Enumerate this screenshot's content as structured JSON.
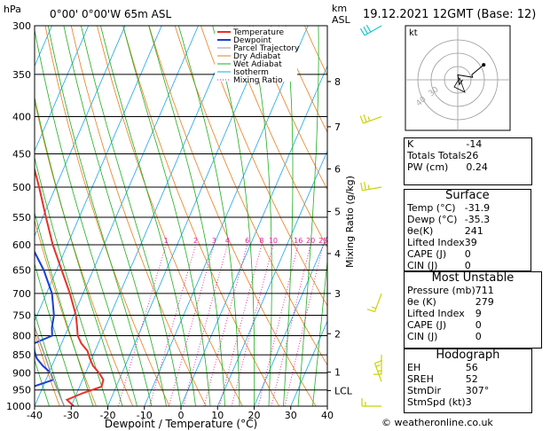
{
  "header": {
    "hpa": "hPa",
    "location": "0°00' 0°00'W 65m ASL",
    "km": "km",
    "asl": "ASL",
    "datetime": "19.12.2021 12GMT (Base: 12)"
  },
  "legend": [
    "Temperature",
    "Dewpoint",
    "Parcel Trajectory",
    "Dry Adiabat",
    "Wet Adiabat",
    "Isotherm",
    "Mixing Ratio"
  ],
  "colors": {
    "temperature": "#e8312a",
    "dewpoint": "#1a3fd1",
    "parcel": "#9a9a9a",
    "dry_adiabat": "#e87e1a",
    "wet_adiabat": "#1faf1f",
    "isotherm": "#1aa7e8",
    "mixing_ratio": "#e0209a",
    "wind": "#c8d400",
    "wind_top": "#18c8c8"
  },
  "chart_data": {
    "type": "line",
    "subtype": "skew-T log-P diagram",
    "xlabel": "Dewpoint / Temperature (°C)",
    "ylabel_right": "Mixing Ratio (g/kg)",
    "xlim": [
      -40,
      40
    ],
    "ylim_hpa": [
      1000,
      300
    ],
    "x_ticks": [
      -40,
      -30,
      -20,
      -10,
      0,
      10,
      20,
      30,
      40
    ],
    "pressure_ticks": [
      300,
      350,
      400,
      450,
      500,
      550,
      600,
      650,
      700,
      750,
      800,
      850,
      900,
      950,
      1000
    ],
    "km_ticks": [
      {
        "label": "8",
        "p": 358
      },
      {
        "label": "7",
        "p": 413
      },
      {
        "label": "6",
        "p": 472
      },
      {
        "label": "5",
        "p": 540
      },
      {
        "label": "4",
        "p": 617
      },
      {
        "label": "3",
        "p": 700
      },
      {
        "label": "2",
        "p": 795
      },
      {
        "label": "1",
        "p": 898
      },
      {
        "label": "LCL",
        "p": 952
      }
    ],
    "mixing_ratio_labels": [
      "1",
      "2",
      "3",
      "4",
      "6",
      "8",
      "10",
      "16",
      "20",
      "25"
    ],
    "series": [
      {
        "name": "Temperature",
        "points": [
          [
            1000,
            -29.3
          ],
          [
            980,
            -31.9
          ],
          [
            960,
            -28.5
          ],
          [
            940,
            -24.0
          ],
          [
            920,
            -24.3
          ],
          [
            900,
            -26.3
          ],
          [
            880,
            -28.8
          ],
          [
            860,
            -30.5
          ],
          [
            840,
            -32.0
          ],
          [
            820,
            -34.6
          ],
          [
            800,
            -36.5
          ],
          [
            780,
            -37.6
          ],
          [
            750,
            -39.4
          ],
          [
            700,
            -43.6
          ],
          [
            650,
            -48.6
          ],
          [
            600,
            -54.0
          ],
          [
            550,
            -59.1
          ],
          [
            500,
            -64.5
          ],
          [
            450,
            -70.8
          ],
          [
            400,
            -77.9
          ],
          [
            350,
            -86.0
          ],
          [
            300,
            -95.4
          ]
        ]
      },
      {
        "name": "Dewpoint",
        "points": [
          [
            1000,
            -43.0
          ],
          [
            990,
            -53.1
          ],
          [
            970,
            -51.0
          ],
          [
            950,
            -45.0
          ],
          [
            920,
            -38.0
          ],
          [
            900,
            -39.5
          ],
          [
            880,
            -42.5
          ],
          [
            860,
            -45.0
          ],
          [
            840,
            -46.5
          ],
          [
            820,
            -47.6
          ],
          [
            800,
            -43.5
          ],
          [
            780,
            -44.5
          ],
          [
            750,
            -45.4
          ],
          [
            700,
            -48.5
          ],
          [
            650,
            -53.5
          ],
          [
            600,
            -60.0
          ],
          [
            550,
            -65.5
          ],
          [
            500,
            -71.0
          ],
          [
            450,
            -76.3
          ],
          [
            400,
            -82.3
          ],
          [
            350,
            -89.2
          ],
          [
            300,
            -97.5
          ]
        ]
      },
      {
        "name": "Parcel Trajectory",
        "points": [
          [
            1000,
            -31.9
          ],
          [
            952,
            -35.5
          ],
          [
            900,
            -39.5
          ],
          [
            850,
            -43.3
          ],
          [
            800,
            -47.5
          ],
          [
            750,
            -51.8
          ],
          [
            700,
            -56.3
          ],
          [
            650,
            -61.2
          ],
          [
            600,
            -66.3
          ],
          [
            550,
            -71.8
          ]
        ]
      }
    ],
    "wind_barbs": [
      {
        "p": 300,
        "dir": 240,
        "kt": 30
      },
      {
        "p": 400,
        "dir": 250,
        "kt": 15
      },
      {
        "p": 500,
        "dir": 260,
        "kt": 15
      },
      {
        "p": 700,
        "dir": 200,
        "kt": 5
      },
      {
        "p": 850,
        "dir": 180,
        "kt": 5
      },
      {
        "p": 925,
        "dir": 340,
        "kt": 5
      },
      {
        "p": 1000,
        "dir": 270,
        "kt": 5
      }
    ],
    "hodograph": {
      "label": "kt",
      "ring_labels": [
        "40",
        "30"
      ]
    }
  },
  "indices": [
    {
      "label": "K",
      "value": "-14"
    },
    {
      "label": "Totals Totals",
      "value": "26"
    },
    {
      "label": "PW (cm)",
      "value": "0.24"
    }
  ],
  "surface": {
    "title": "Surface",
    "rows": [
      {
        "label": "Temp (°C)",
        "value": "-31.9"
      },
      {
        "label": "Dewp (°C)",
        "value": "-35.3"
      },
      {
        "label": "θe(K)",
        "value": "241"
      },
      {
        "label": "Lifted Index",
        "value": "39"
      },
      {
        "label": "CAPE (J)",
        "value": "0"
      },
      {
        "label": "CIN (J)",
        "value": "0"
      }
    ]
  },
  "most_unstable": {
    "title": "Most Unstable",
    "rows": [
      {
        "label": "Pressure (mb)",
        "value": "711"
      },
      {
        "label": "θe (K)",
        "value": "279"
      },
      {
        "label": "Lifted Index",
        "value": "9"
      },
      {
        "label": "CAPE (J)",
        "value": "0"
      },
      {
        "label": "CIN (J)",
        "value": "0"
      }
    ]
  },
  "hodograph_stats": {
    "title": "Hodograph",
    "rows": [
      {
        "label": "EH",
        "value": "56"
      },
      {
        "label": "SREH",
        "value": "52"
      },
      {
        "label": "StmDir",
        "value": "307°"
      },
      {
        "label": "StmSpd (kt)",
        "value": "3"
      }
    ]
  },
  "footer": {
    "copyright": "© weatheronline.co.uk"
  }
}
